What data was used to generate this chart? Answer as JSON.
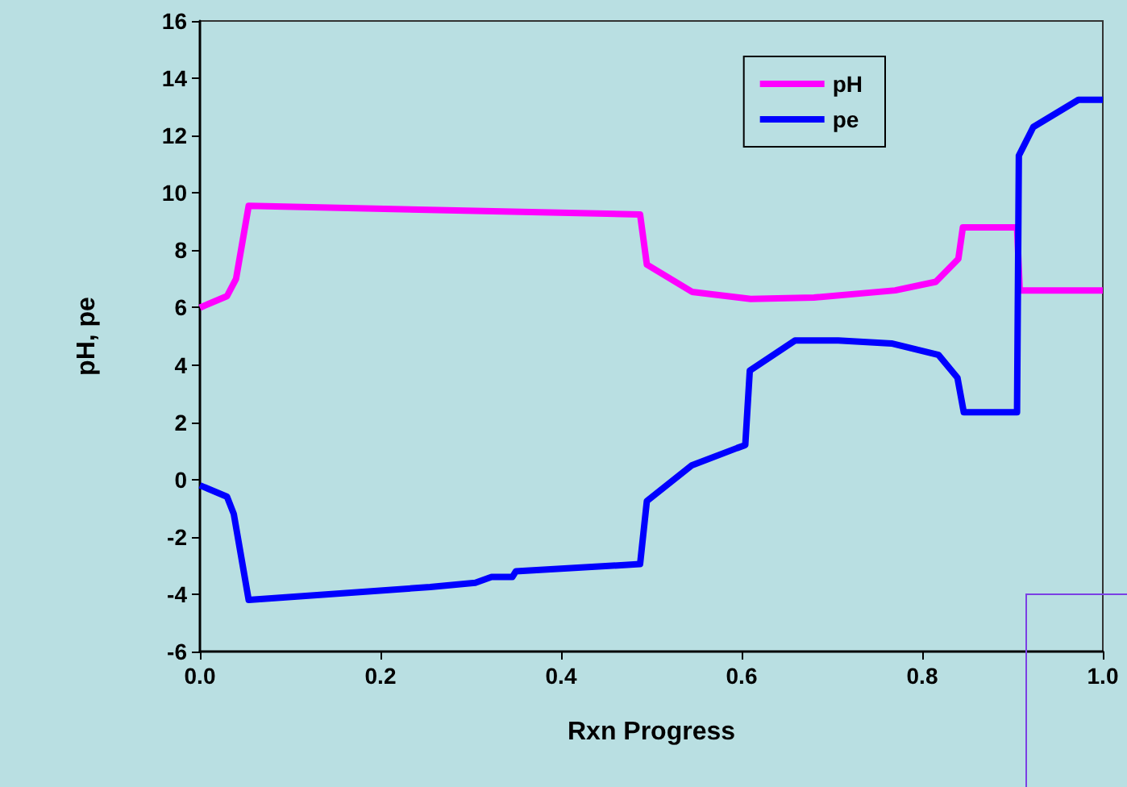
{
  "chart_data": {
    "type": "line",
    "xlabel": "Rxn Progress",
    "ylabel": "pH, pe",
    "xlim": [
      0,
      1
    ],
    "xticks": [
      {
        "value": 0,
        "label": "0.0"
      },
      {
        "value": 0.2,
        "label": "0.2"
      },
      {
        "value": 0.4,
        "label": "0.4"
      },
      {
        "value": 0.6,
        "label": "0.6"
      },
      {
        "value": 0.8,
        "label": "0.8"
      },
      {
        "value": 1,
        "label": "1.0"
      }
    ],
    "ylim": [
      -6,
      16
    ],
    "yticks": [
      -6,
      -4,
      -2,
      0,
      2,
      4,
      6,
      8,
      10,
      12,
      14,
      16
    ],
    "grid": false,
    "legend": "top right",
    "marker": "none",
    "line_style": "solid",
    "series": [
      {
        "name": "pH",
        "color": "#ff00ff",
        "x": [
          0,
          0.03,
          0.04,
          0.054,
          0.4875,
          0.495,
          0.545,
          0.61,
          0.68,
          0.77,
          0.815,
          0.84,
          0.845,
          0.905,
          0.908,
          1.0
        ],
        "values": [
          6.0,
          6.4,
          7.0,
          9.55,
          9.25,
          7.5,
          6.55,
          6.3,
          6.35,
          6.6,
          6.9,
          7.7,
          8.8,
          8.8,
          6.6,
          6.6
        ]
      },
      {
        "name": "pe",
        "color": "#0000ff",
        "x": [
          0,
          0.03,
          0.0375,
          0.054,
          0.255,
          0.305,
          0.323,
          0.346,
          0.35,
          0.4875,
          0.495,
          0.545,
          0.595,
          0.604,
          0.609,
          0.659,
          0.707,
          0.766,
          0.818,
          0.839,
          0.846,
          0.905,
          0.907,
          0.923,
          0.973,
          1.0
        ],
        "values": [
          -0.2,
          -0.6,
          -1.2,
          -4.2,
          -3.75,
          -3.6,
          -3.4,
          -3.4,
          -3.2,
          -2.95,
          -0.75,
          0.5,
          1.1,
          1.2,
          3.8,
          4.85,
          4.85,
          4.75,
          4.35,
          3.55,
          2.35,
          2.35,
          11.3,
          12.3,
          13.25,
          13.25
        ]
      }
    ]
  }
}
